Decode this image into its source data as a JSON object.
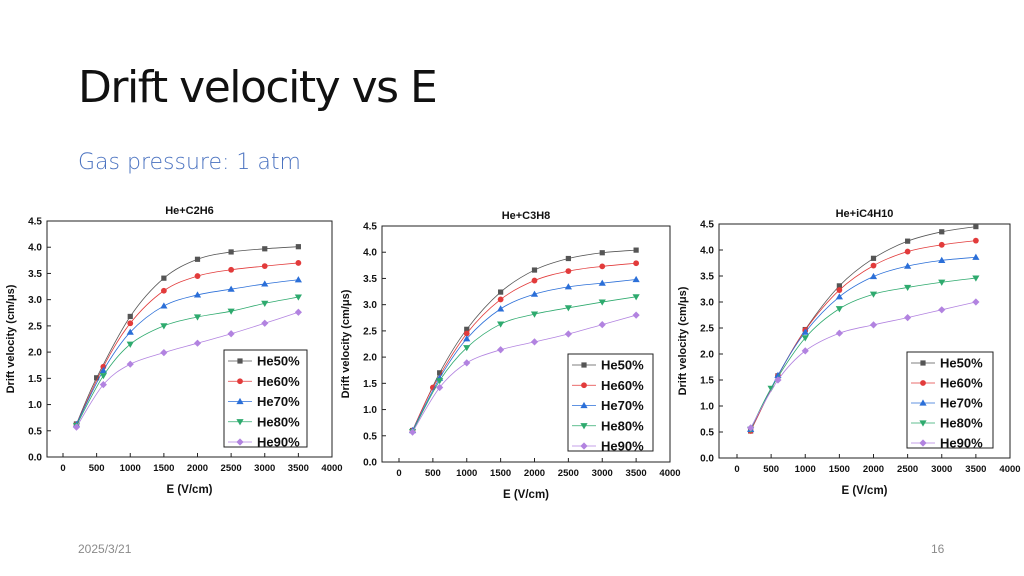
{
  "slide": {
    "title": "Drift velocity vs E",
    "subtitle": "Gas pressure: 1 atm",
    "date": "2025/3/21",
    "page_number": "16"
  },
  "series_style": [
    {
      "name": "He50%",
      "color": "#555555",
      "marker": "square"
    },
    {
      "name": "He60%",
      "color": "#e23b3b",
      "marker": "circle"
    },
    {
      "name": "He70%",
      "color": "#2b6fd8",
      "marker": "triangle-up"
    },
    {
      "name": "He80%",
      "color": "#2eaa6e",
      "marker": "triangle-down"
    },
    {
      "name": "He90%",
      "color": "#b283e0",
      "marker": "diamond"
    }
  ],
  "chart_data": [
    {
      "type": "line",
      "title": "He+C2H6",
      "xlabel": "E (V/cm)",
      "ylabel": "Drift velocity (cm/μs)",
      "xlim": [
        0,
        4000
      ],
      "ylim": [
        0,
        4.5
      ],
      "xticks": [
        0,
        500,
        1000,
        1500,
        2000,
        2500,
        3000,
        3500,
        4000
      ],
      "yticks": [
        "0.0",
        "0.5",
        "1.0",
        "1.5",
        "2.0",
        "2.5",
        "3.0",
        "3.5",
        "4.0",
        "4.5"
      ],
      "grid": false,
      "legend": "bottom-right",
      "series": [
        {
          "name": "He50%",
          "x": [
            200,
            500,
            1000,
            1500,
            2000,
            2500,
            3000,
            3500
          ],
          "y": [
            0.63,
            1.51,
            2.68,
            3.41,
            3.77,
            3.91,
            3.97,
            4.01
          ]
        },
        {
          "name": "He60%",
          "x": [
            200,
            600,
            1000,
            1500,
            2000,
            2500,
            3000,
            3500
          ],
          "y": [
            0.62,
            1.72,
            2.55,
            3.17,
            3.45,
            3.57,
            3.64,
            3.7
          ]
        },
        {
          "name": "He70%",
          "x": [
            200,
            600,
            1000,
            1500,
            2000,
            2500,
            3000,
            3500
          ],
          "y": [
            0.62,
            1.65,
            2.38,
            2.88,
            3.09,
            3.2,
            3.3,
            3.38
          ]
        },
        {
          "name": "He80%",
          "x": [
            200,
            600,
            1000,
            1500,
            2000,
            2500,
            3000,
            3500
          ],
          "y": [
            0.6,
            1.55,
            2.15,
            2.5,
            2.67,
            2.78,
            2.93,
            3.05
          ]
        },
        {
          "name": "He90%",
          "x": [
            200,
            600,
            1000,
            1500,
            2000,
            2500,
            3000,
            3500
          ],
          "y": [
            0.57,
            1.38,
            1.77,
            1.99,
            2.17,
            2.35,
            2.55,
            2.76
          ]
        }
      ]
    },
    {
      "type": "line",
      "title": "He+C3H8",
      "xlabel": "E (V/cm)",
      "ylabel": "Drift velocity (cm/μs)",
      "xlim": [
        0,
        4000
      ],
      "ylim": [
        0,
        4.5
      ],
      "xticks": [
        0,
        500,
        1000,
        1500,
        2000,
        2500,
        3000,
        3500,
        4000
      ],
      "yticks": [
        "0.0",
        "0.5",
        "1.0",
        "1.5",
        "2.0",
        "2.5",
        "3.0",
        "3.5",
        "4.0",
        "4.5"
      ],
      "grid": false,
      "legend": "bottom-right",
      "series": [
        {
          "name": "He50%",
          "x": [
            200,
            600,
            1000,
            1500,
            2000,
            2500,
            3000,
            3500
          ],
          "y": [
            0.6,
            1.7,
            2.53,
            3.24,
            3.66,
            3.88,
            3.99,
            4.04
          ]
        },
        {
          "name": "He60%",
          "x": [
            200,
            500,
            1000,
            1500,
            2000,
            2500,
            3000,
            3500
          ],
          "y": [
            0.6,
            1.42,
            2.45,
            3.1,
            3.46,
            3.64,
            3.73,
            3.79
          ]
        },
        {
          "name": "He70%",
          "x": [
            200,
            600,
            1000,
            1500,
            2000,
            2500,
            3000,
            3500
          ],
          "y": [
            0.6,
            1.6,
            2.35,
            2.92,
            3.2,
            3.34,
            3.41,
            3.48
          ]
        },
        {
          "name": "He80%",
          "x": [
            200,
            600,
            1000,
            1500,
            2000,
            2500,
            3000,
            3500
          ],
          "y": [
            0.58,
            1.55,
            2.18,
            2.63,
            2.82,
            2.94,
            3.05,
            3.15
          ]
        },
        {
          "name": "He90%",
          "x": [
            200,
            600,
            1000,
            1500,
            2000,
            2500,
            3000,
            3500
          ],
          "y": [
            0.57,
            1.42,
            1.89,
            2.14,
            2.29,
            2.44,
            2.62,
            2.8
          ]
        }
      ]
    },
    {
      "type": "line",
      "title": "He+iC4H10",
      "xlabel": "E (V/cm)",
      "ylabel": "Drift velocity (cm/μs)",
      "xlim": [
        0,
        4000
      ],
      "ylim": [
        0,
        4.5
      ],
      "xticks": [
        0,
        500,
        1000,
        1500,
        2000,
        2500,
        3000,
        3500,
        4000
      ],
      "yticks": [
        "0.0",
        "0.5",
        "1.0",
        "1.5",
        "2.0",
        "2.5",
        "3.0",
        "3.5",
        "4.0",
        "4.5"
      ],
      "grid": false,
      "legend": "bottom-right",
      "series": [
        {
          "name": "He50%",
          "x": [
            200,
            600,
            1000,
            1500,
            2000,
            2500,
            3000,
            3500
          ],
          "y": [
            0.52,
            1.58,
            2.47,
            3.31,
            3.84,
            4.17,
            4.35,
            4.45
          ]
        },
        {
          "name": "He60%",
          "x": [
            200,
            600,
            1000,
            1500,
            2000,
            2500,
            3000,
            3500
          ],
          "y": [
            0.52,
            1.58,
            2.46,
            3.23,
            3.7,
            3.97,
            4.1,
            4.18
          ]
        },
        {
          "name": "He70%",
          "x": [
            200,
            600,
            1000,
            1500,
            2000,
            2500,
            3000,
            3500
          ],
          "y": [
            0.55,
            1.59,
            2.42,
            3.1,
            3.49,
            3.69,
            3.8,
            3.86
          ]
        },
        {
          "name": "He80%",
          "x": [
            200,
            500,
            1000,
            1500,
            2000,
            2500,
            3000,
            3500
          ],
          "y": [
            0.55,
            1.34,
            2.31,
            2.87,
            3.15,
            3.28,
            3.38,
            3.46
          ]
        },
        {
          "name": "He90%",
          "x": [
            200,
            600,
            1000,
            1500,
            2000,
            2500,
            3000,
            3500
          ],
          "y": [
            0.58,
            1.5,
            2.06,
            2.4,
            2.56,
            2.7,
            2.85,
            3.0
          ]
        }
      ]
    }
  ]
}
